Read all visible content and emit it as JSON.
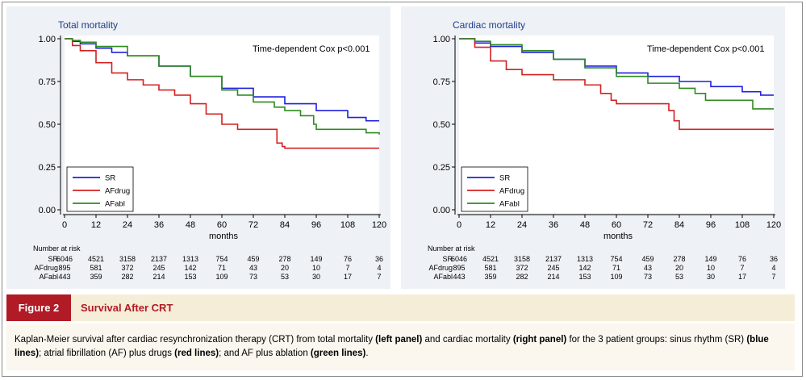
{
  "chart_data": [
    {
      "type": "line",
      "title": "Total mortality",
      "annotation": "Time-dependent Cox p<0.001",
      "xlabel": "months",
      "ylabel": "",
      "xlim": [
        0,
        120
      ],
      "ylim": [
        0,
        1
      ],
      "x_ticks": [
        "0",
        "12",
        "24",
        "36",
        "48",
        "60",
        "72",
        "84",
        "96",
        "108",
        "120"
      ],
      "y_ticks": [
        "0.00",
        "0.25",
        "0.50",
        "0.75",
        "1.00"
      ],
      "legend_position": "bottom-left",
      "series": [
        {
          "name": "SR",
          "color": "#1f1fe0",
          "x": [
            0,
            3,
            6,
            12,
            18,
            24,
            36,
            48,
            60,
            72,
            84,
            96,
            108,
            115,
            120
          ],
          "y": [
            1.0,
            0.985,
            0.97,
            0.945,
            0.92,
            0.9,
            0.84,
            0.78,
            0.71,
            0.66,
            0.62,
            0.58,
            0.54,
            0.52,
            0.52
          ]
        },
        {
          "name": "AFdrug",
          "color": "#d42020",
          "x": [
            0,
            3,
            6,
            12,
            18,
            24,
            30,
            36,
            42,
            48,
            54,
            60,
            66,
            72,
            80,
            81,
            83,
            84,
            96,
            108,
            120
          ],
          "y": [
            1.0,
            0.96,
            0.93,
            0.86,
            0.8,
            0.76,
            0.73,
            0.7,
            0.67,
            0.62,
            0.56,
            0.5,
            0.47,
            0.47,
            0.47,
            0.39,
            0.37,
            0.36,
            0.36,
            0.36,
            0.36
          ]
        },
        {
          "name": "AFabl",
          "color": "#2e8b1e",
          "x": [
            0,
            3,
            6,
            12,
            24,
            36,
            48,
            60,
            66,
            72,
            80,
            84,
            90,
            95,
            96,
            108,
            115,
            120
          ],
          "y": [
            1.0,
            0.99,
            0.98,
            0.955,
            0.9,
            0.84,
            0.78,
            0.7,
            0.67,
            0.63,
            0.6,
            0.58,
            0.55,
            0.5,
            0.47,
            0.47,
            0.45,
            0.44
          ]
        }
      ],
      "risk_table": {
        "header": "Number at risk",
        "rows": [
          {
            "label": "SR",
            "values": [
              "6046",
              "4521",
              "3158",
              "2137",
              "1313",
              "754",
              "459",
              "278",
              "149",
              "76",
              "36"
            ]
          },
          {
            "label": "AFdrug",
            "values": [
              "895",
              "581",
              "372",
              "245",
              "142",
              "71",
              "43",
              "20",
              "10",
              "7",
              "4"
            ]
          },
          {
            "label": "AFabl",
            "values": [
              "443",
              "359",
              "282",
              "214",
              "153",
              "109",
              "73",
              "53",
              "30",
              "17",
              "7"
            ]
          }
        ]
      }
    },
    {
      "type": "line",
      "title": "Cardiac mortality",
      "annotation": "Time-dependent Cox p<0.001",
      "xlabel": "months",
      "ylabel": "",
      "xlim": [
        0,
        120
      ],
      "ylim": [
        0,
        1
      ],
      "x_ticks": [
        "0",
        "12",
        "24",
        "36",
        "48",
        "60",
        "72",
        "84",
        "96",
        "108",
        "120"
      ],
      "y_ticks": [
        "0.00",
        "0.25",
        "0.50",
        "0.75",
        "1.00"
      ],
      "legend_position": "bottom-left",
      "series": [
        {
          "name": "SR",
          "color": "#1f1fe0",
          "x": [
            0,
            6,
            12,
            24,
            36,
            48,
            60,
            72,
            84,
            96,
            108,
            115,
            120
          ],
          "y": [
            1.0,
            0.975,
            0.955,
            0.92,
            0.88,
            0.84,
            0.8,
            0.78,
            0.75,
            0.72,
            0.69,
            0.67,
            0.67
          ]
        },
        {
          "name": "AFdrug",
          "color": "#d42020",
          "x": [
            0,
            6,
            12,
            18,
            24,
            36,
            48,
            54,
            58,
            60,
            66,
            72,
            78,
            80,
            82,
            84,
            96,
            108,
            120
          ],
          "y": [
            1.0,
            0.95,
            0.87,
            0.82,
            0.79,
            0.76,
            0.73,
            0.68,
            0.64,
            0.62,
            0.62,
            0.62,
            0.62,
            0.58,
            0.52,
            0.47,
            0.47,
            0.47,
            0.47
          ]
        },
        {
          "name": "AFabl",
          "color": "#2e8b1e",
          "x": [
            0,
            6,
            12,
            24,
            36,
            48,
            60,
            72,
            84,
            90,
            94,
            96,
            108,
            112,
            120
          ],
          "y": [
            1.0,
            0.985,
            0.965,
            0.93,
            0.88,
            0.83,
            0.78,
            0.74,
            0.71,
            0.68,
            0.64,
            0.64,
            0.64,
            0.59,
            0.59
          ]
        }
      ],
      "risk_table": {
        "header": "Number at risk",
        "rows": [
          {
            "label": "SR",
            "values": [
              "6046",
              "4521",
              "3158",
              "2137",
              "1313",
              "754",
              "459",
              "278",
              "149",
              "76",
              "36"
            ]
          },
          {
            "label": "AFdrug",
            "values": [
              "895",
              "581",
              "372",
              "245",
              "142",
              "71",
              "43",
              "20",
              "10",
              "7",
              "4"
            ]
          },
          {
            "label": "AFabl",
            "values": [
              "443",
              "359",
              "282",
              "214",
              "153",
              "109",
              "73",
              "53",
              "30",
              "17",
              "7"
            ]
          }
        ]
      }
    }
  ],
  "figure": {
    "label": "Figure 2",
    "title": "Survival After CRT",
    "caption": [
      {
        "text": "Kaplan-Meier survival after cardiac resynchronization therapy (CRT) from total mortality ",
        "bold": false
      },
      {
        "text": "(left panel)",
        "bold": true
      },
      {
        "text": " and cardiac mortality ",
        "bold": false
      },
      {
        "text": "(right panel)",
        "bold": true
      },
      {
        "text": " for the 3 patient groups: sinus rhythm (SR) ",
        "bold": false
      },
      {
        "text": "(blue lines)",
        "bold": true
      },
      {
        "text": "; atrial fibrillation (AF) plus drugs ",
        "bold": false
      },
      {
        "text": "(red lines)",
        "bold": true
      },
      {
        "text": "; and AF plus ablation ",
        "bold": false
      },
      {
        "text": "(green lines)",
        "bold": true
      },
      {
        "text": ".",
        "bold": false
      }
    ]
  }
}
